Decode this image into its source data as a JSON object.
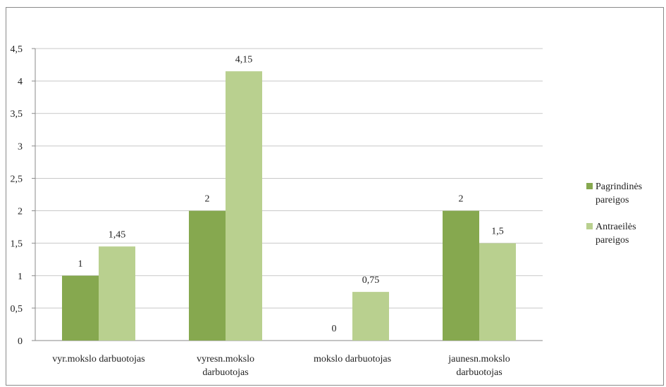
{
  "chart_data": {
    "type": "bar",
    "categories": [
      [
        "vyr.mokslo darbuotojas"
      ],
      [
        "vyresn.mokslo",
        "darbuotojas"
      ],
      [
        "mokslo darbuotojas"
      ],
      [
        "jaunesn.mokslo",
        "darbuotojas"
      ]
    ],
    "series": [
      {
        "name": [
          "Pagrindinės",
          "pareigos"
        ],
        "color": "#86a84f",
        "values": [
          1,
          2,
          0,
          2
        ],
        "labels": [
          "1",
          "2",
          "0",
          "2"
        ]
      },
      {
        "name": [
          "Antraeilės",
          "pareigos"
        ],
        "color": "#b9d08f",
        "values": [
          1.45,
          4.15,
          0.75,
          1.5
        ],
        "labels": [
          "1,45",
          "4,15",
          "0,75",
          "1,5"
        ]
      }
    ],
    "ylim": [
      0,
      4.5
    ],
    "yticks": [
      {
        "value": 0,
        "label": "0"
      },
      {
        "value": 0.5,
        "label": "0,5"
      },
      {
        "value": 1,
        "label": "1"
      },
      {
        "value": 1.5,
        "label": "1,5"
      },
      {
        "value": 2,
        "label": "2"
      },
      {
        "value": 2.5,
        "label": "2,5"
      },
      {
        "value": 3,
        "label": "3"
      },
      {
        "value": 3.5,
        "label": "3,5"
      },
      {
        "value": 4,
        "label": "4"
      },
      {
        "value": 4.5,
        "label": "4,5"
      }
    ],
    "grid": true,
    "legend_position": "right",
    "colors": {
      "grid": "#c8c8c8",
      "axis": "#8a8a8a"
    }
  }
}
